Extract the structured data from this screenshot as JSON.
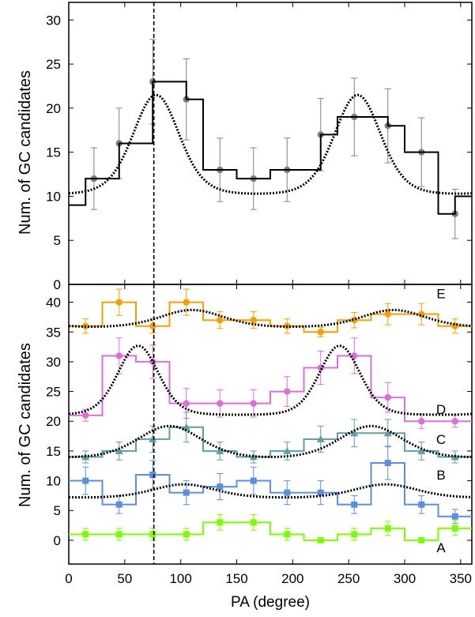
{
  "chart_data": [
    {
      "type": "line",
      "panel": "top",
      "ylabel": "Num. of GC candidates",
      "xlim": [
        0,
        360
      ],
      "ylim": [
        0,
        32
      ],
      "yticks": [
        "0",
        "5",
        "10",
        "15",
        "20",
        "25",
        "30"
      ],
      "vline_x": 76,
      "step_series": {
        "color": "#000000",
        "edges": [
          0,
          15,
          30,
          45,
          60,
          75,
          90,
          105,
          120,
          135,
          150,
          165,
          180,
          195,
          210,
          225,
          240,
          255,
          270,
          285,
          300,
          315,
          330,
          345,
          360
        ],
        "values": [
          9,
          12,
          12,
          16,
          16,
          23,
          23,
          21,
          13,
          13,
          12,
          12,
          13,
          13,
          13,
          17,
          19,
          19,
          19,
          18,
          15,
          15,
          8,
          10
        ]
      },
      "points": {
        "color": "#808080",
        "x": [
          22.5,
          45,
          75,
          105,
          135,
          165,
          195,
          225,
          255,
          285,
          315,
          345
        ],
        "y": [
          12,
          16,
          23,
          21,
          13,
          12,
          13,
          17,
          19,
          18,
          15,
          8
        ],
        "err": [
          3.5,
          4.0,
          4.8,
          4.6,
          3.6,
          3.5,
          3.6,
          4.1,
          4.4,
          4.2,
          3.9,
          2.8
        ]
      },
      "model": {
        "amplitude": 5.6,
        "offset": 15.9,
        "peaks": [
          78,
          258
        ],
        "k": 2.0
      }
    },
    {
      "type": "line",
      "panel": "bottom",
      "ylabel": "Num. of GC candidates",
      "xlabel": "PA (degree)",
      "xlim": [
        0,
        360
      ],
      "ylim": [
        -4,
        43
      ],
      "yticks": [
        "0",
        "5",
        "10",
        "15",
        "20",
        "25",
        "30",
        "35",
        "40"
      ],
      "xticks": [
        "0",
        "50",
        "100",
        "150",
        "200",
        "250",
        "300",
        "350"
      ],
      "vline_x": 76,
      "series": [
        {
          "name": "E",
          "color": "#F5A000",
          "marker": "circle",
          "edges": [
            0,
            30,
            60,
            90,
            120,
            150,
            180,
            210,
            240,
            270,
            300,
            330,
            360
          ],
          "values": [
            36,
            40,
            36,
            40,
            37,
            37,
            36,
            35,
            37,
            38,
            38,
            36
          ],
          "x": [
            15,
            45,
            75,
            105,
            135,
            165,
            195,
            225,
            255,
            285,
            315,
            345
          ],
          "err": [
            1.2,
            2.2,
            1.2,
            2.2,
            1.4,
            1.4,
            1.2,
            0.8,
            1.3,
            1.8,
            1.8,
            1.2
          ],
          "model": {
            "amplitude": 1.4,
            "offset": 37.3,
            "peaks": [
              110,
              290
            ],
            "k": 1.0
          }
        },
        {
          "name": "D",
          "color": "#DA70D6",
          "marker": "circle",
          "edges": [
            0,
            30,
            60,
            90,
            120,
            150,
            180,
            210,
            240,
            270,
            300,
            330,
            360
          ],
          "values": [
            21,
            31,
            30,
            23,
            23,
            23,
            25,
            29,
            31,
            24,
            20,
            20
          ],
          "x": [
            15,
            45,
            75,
            105,
            135,
            165,
            195,
            225,
            255,
            285,
            315,
            345
          ],
          "err": [
            1.0,
            3.0,
            2.8,
            2.5,
            2.3,
            2.3,
            2.5,
            2.8,
            3.0,
            2.5,
            1.2,
            1.0
          ],
          "model": {
            "amplitude": 5.8,
            "offset": 26.9,
            "peaks": [
              62,
              242
            ],
            "k": 2.6
          }
        },
        {
          "name": "C",
          "color": "#5F9EA0",
          "marker": "triangle",
          "edges": [
            0,
            30,
            60,
            90,
            120,
            150,
            180,
            210,
            240,
            270,
            300,
            330,
            360
          ],
          "values": [
            14,
            15,
            17,
            19,
            15,
            14,
            15,
            17,
            18,
            18,
            15,
            14
          ],
          "x": [
            15,
            45,
            75,
            105,
            135,
            165,
            195,
            225,
            255,
            285,
            315,
            345
          ],
          "err": [
            1.0,
            1.5,
            2.2,
            2.5,
            1.5,
            1.0,
            1.5,
            2.2,
            2.3,
            2.3,
            1.5,
            1.0
          ],
          "model": {
            "amplitude": 2.6,
            "offset": 16.6,
            "peaks": [
              90,
              270
            ],
            "k": 1.0
          }
        },
        {
          "name": "B",
          "color": "#5B8FD9",
          "marker": "square",
          "edges": [
            0,
            30,
            60,
            90,
            120,
            150,
            180,
            210,
            240,
            270,
            300,
            330,
            360
          ],
          "values": [
            10,
            6,
            11,
            8,
            9,
            10,
            8,
            8,
            6,
            13,
            6,
            4
          ],
          "x": [
            15,
            45,
            75,
            105,
            135,
            165,
            195,
            225,
            255,
            285,
            315,
            345
          ],
          "err": [
            2.3,
            1.5,
            2.4,
            2.0,
            2.2,
            2.3,
            2.0,
            2.0,
            1.5,
            2.8,
            1.5,
            1.2
          ],
          "model": {
            "amplitude": 1.1,
            "offset": 8.3,
            "peaks": [
              103,
              283
            ],
            "k": 1.0
          }
        },
        {
          "name": "A",
          "color": "#7CFC00",
          "marker": "square",
          "edges": [
            0,
            30,
            60,
            90,
            120,
            150,
            180,
            210,
            240,
            270,
            300,
            330,
            360
          ],
          "values": [
            1,
            1,
            1,
            1,
            3,
            3,
            1,
            0,
            1,
            2,
            0,
            2
          ],
          "x": [
            15,
            45,
            75,
            105,
            135,
            165,
            195,
            225,
            255,
            285,
            315,
            345
          ],
          "err": [
            1.0,
            1.0,
            1.0,
            1.0,
            1.3,
            1.3,
            1.0,
            0.4,
            1.0,
            1.2,
            0.4,
            1.2
          ],
          "model": null
        }
      ]
    }
  ]
}
